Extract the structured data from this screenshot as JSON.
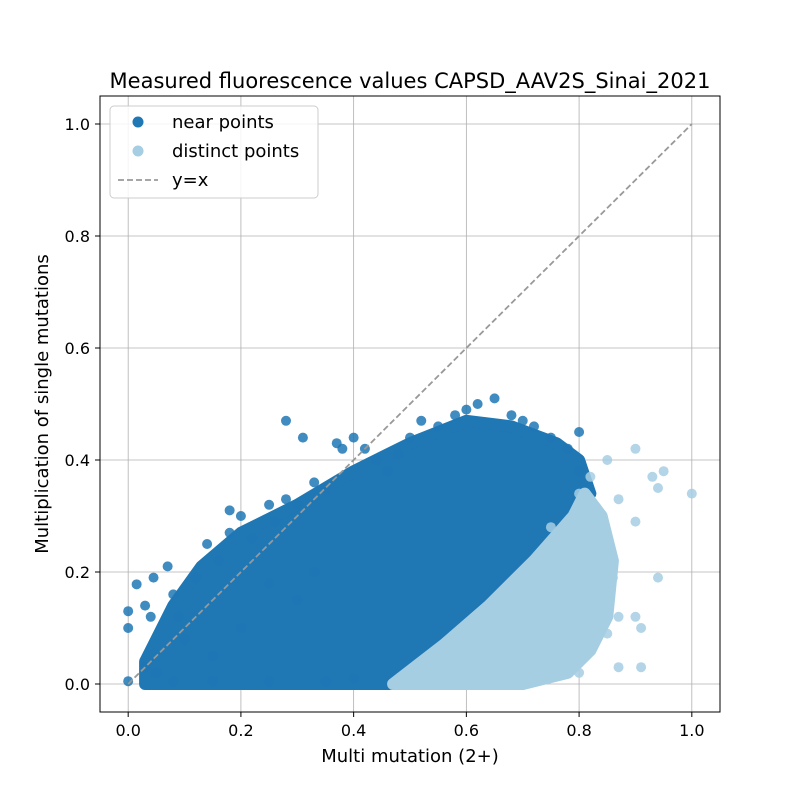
{
  "chart_data": {
    "type": "scatter",
    "title": "Measured fluorescence values CAPSD_AAV2S_Sinai_2021",
    "xlabel": "Multi mutation (2+)",
    "ylabel": "Multiplication of single mutations",
    "xlim": [
      -0.05,
      1.05
    ],
    "ylim": [
      -0.05,
      1.05
    ],
    "xticks": [
      0.0,
      0.2,
      0.4,
      0.6,
      0.8,
      1.0
    ],
    "yticks": [
      0.0,
      0.2,
      0.4,
      0.6,
      0.8,
      1.0
    ],
    "xtick_labels": [
      "0.0",
      "0.2",
      "0.4",
      "0.6",
      "0.8",
      "1.0"
    ],
    "ytick_labels": [
      "0.0",
      "0.2",
      "0.4",
      "0.6",
      "0.8",
      "1.0"
    ],
    "grid": true,
    "legend_position": "top-left",
    "series": [
      {
        "name": "near points",
        "color": "#1f77b4",
        "marker": "circle",
        "points": [
          [
            0.0,
            0.005
          ],
          [
            0.0,
            0.13
          ],
          [
            0.0,
            0.1
          ],
          [
            0.015,
            0.178
          ],
          [
            0.03,
            0.14
          ],
          [
            0.045,
            0.19
          ],
          [
            0.04,
            0.12
          ],
          [
            0.07,
            0.21
          ],
          [
            0.08,
            0.16
          ],
          [
            0.09,
            0.12
          ],
          [
            0.1,
            0.08
          ],
          [
            0.05,
            0.02
          ],
          [
            0.03,
            0.03
          ],
          [
            0.12,
            0.19
          ],
          [
            0.14,
            0.25
          ],
          [
            0.16,
            0.22
          ],
          [
            0.18,
            0.27
          ],
          [
            0.18,
            0.31
          ],
          [
            0.2,
            0.3
          ],
          [
            0.22,
            0.26
          ],
          [
            0.25,
            0.32
          ],
          [
            0.26,
            0.29
          ],
          [
            0.28,
            0.33
          ],
          [
            0.28,
            0.47
          ],
          [
            0.31,
            0.44
          ],
          [
            0.3,
            0.32
          ],
          [
            0.33,
            0.36
          ],
          [
            0.35,
            0.35
          ],
          [
            0.37,
            0.43
          ],
          [
            0.38,
            0.42
          ],
          [
            0.4,
            0.44
          ],
          [
            0.42,
            0.42
          ],
          [
            0.44,
            0.4
          ],
          [
            0.46,
            0.38
          ],
          [
            0.48,
            0.41
          ],
          [
            0.5,
            0.44
          ],
          [
            0.52,
            0.47
          ],
          [
            0.55,
            0.46
          ],
          [
            0.58,
            0.48
          ],
          [
            0.6,
            0.49
          ],
          [
            0.62,
            0.5
          ],
          [
            0.65,
            0.51
          ],
          [
            0.68,
            0.48
          ],
          [
            0.7,
            0.47
          ],
          [
            0.72,
            0.46
          ],
          [
            0.75,
            0.44
          ],
          [
            0.78,
            0.42
          ],
          [
            0.8,
            0.45
          ],
          [
            0.8,
            0.38
          ],
          [
            0.08,
            0.005
          ],
          [
            0.15,
            0.005
          ],
          [
            0.25,
            0.005
          ],
          [
            0.35,
            0.005
          ],
          [
            0.4,
            0.01
          ],
          [
            0.2,
            0.1
          ],
          [
            0.3,
            0.15
          ],
          [
            0.15,
            0.05
          ],
          [
            0.33,
            0.2
          ],
          [
            0.25,
            0.18
          ]
        ]
      },
      {
        "name": "distinct points",
        "color": "#a6cee3",
        "marker": "circle",
        "points": [
          [
            0.47,
            0.0
          ],
          [
            0.55,
            0.03
          ],
          [
            0.6,
            0.08
          ],
          [
            0.65,
            0.14
          ],
          [
            0.7,
            0.2
          ],
          [
            0.75,
            0.28
          ],
          [
            0.8,
            0.34
          ],
          [
            0.82,
            0.37
          ],
          [
            0.85,
            0.4
          ],
          [
            0.9,
            0.42
          ],
          [
            0.93,
            0.37
          ],
          [
            0.95,
            0.38
          ],
          [
            0.94,
            0.35
          ],
          [
            0.87,
            0.33
          ],
          [
            0.9,
            0.29
          ],
          [
            0.86,
            0.19
          ],
          [
            0.94,
            0.19
          ],
          [
            0.87,
            0.12
          ],
          [
            0.9,
            0.12
          ],
          [
            0.85,
            0.09
          ],
          [
            0.91,
            0.1
          ],
          [
            0.8,
            0.06
          ],
          [
            0.87,
            0.03
          ],
          [
            0.91,
            0.03
          ],
          [
            0.78,
            0.03
          ],
          [
            0.72,
            0.02
          ],
          [
            0.66,
            0.01
          ],
          [
            0.6,
            0.0
          ],
          [
            1.0,
            0.34
          ],
          [
            0.8,
            0.02
          ]
        ]
      }
    ],
    "reference_line": {
      "name": "y=x",
      "color": "#999999",
      "style": "dashed",
      "x": [
        0.0,
        1.0
      ],
      "y": [
        0.0,
        1.0
      ]
    }
  }
}
